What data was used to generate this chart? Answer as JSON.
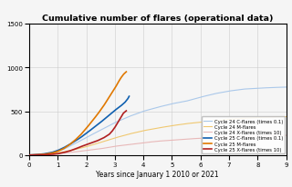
{
  "title": "Cumulative number of flares (operational data)",
  "xlabel": "Years since January 1 2010 or 2021",
  "xlim": [
    0,
    9
  ],
  "ylim": [
    0,
    1500
  ],
  "yticks": [
    0,
    500,
    1000,
    1500
  ],
  "xticks": [
    0,
    1,
    2,
    3,
    4,
    5,
    6,
    7,
    8,
    9
  ],
  "background_color": "#f5f5f5",
  "grid_color": "#cccccc",
  "series": {
    "c24_C": {
      "label": "Cycle 24 C-flares (times 0.1)",
      "color": "#aac8ea",
      "lw": 0.8,
      "zorder": 2
    },
    "c24_M": {
      "label": "Cycle 24 M-flares",
      "color": "#f0c870",
      "lw": 0.8,
      "zorder": 2
    },
    "c24_X": {
      "label": "Cycle 24 X-flares (times 10)",
      "color": "#e8b8b8",
      "lw": 0.8,
      "zorder": 2
    },
    "c25_C": {
      "label": "Cycle 25 C-flares (times 0.1)",
      "color": "#1060b0",
      "lw": 1.2,
      "zorder": 3
    },
    "c25_M": {
      "label": "Cycle 25 M-flares",
      "color": "#e07800",
      "lw": 1.2,
      "zorder": 3
    },
    "c25_X": {
      "label": "Cycle 25 X-flares (times 10)",
      "color": "#b02020",
      "lw": 1.2,
      "zorder": 3
    }
  },
  "c24_C_pts": [
    [
      0,
      0
    ],
    [
      0.4,
      8
    ],
    [
      0.8,
      25
    ],
    [
      1.2,
      65
    ],
    [
      1.6,
      130
    ],
    [
      2.0,
      200
    ],
    [
      2.5,
      285
    ],
    [
      3.0,
      370
    ],
    [
      3.5,
      440
    ],
    [
      4.0,
      500
    ],
    [
      4.5,
      545
    ],
    [
      5.0,
      585
    ],
    [
      5.5,
      615
    ],
    [
      6.0,
      660
    ],
    [
      6.5,
      700
    ],
    [
      7.0,
      730
    ],
    [
      7.5,
      752
    ],
    [
      8.0,
      762
    ],
    [
      8.5,
      770
    ],
    [
      9.0,
      775
    ]
  ],
  "c24_M_pts": [
    [
      0,
      0
    ],
    [
      0.5,
      8
    ],
    [
      1.0,
      25
    ],
    [
      1.5,
      55
    ],
    [
      2.0,
      95
    ],
    [
      2.5,
      145
    ],
    [
      3.0,
      195
    ],
    [
      3.5,
      240
    ],
    [
      4.0,
      278
    ],
    [
      4.5,
      308
    ],
    [
      5.0,
      335
    ],
    [
      5.5,
      358
    ],
    [
      6.0,
      375
    ],
    [
      6.5,
      392
    ],
    [
      7.0,
      408
    ],
    [
      7.5,
      420
    ],
    [
      8.0,
      428
    ],
    [
      8.5,
      433
    ],
    [
      9.0,
      438
    ]
  ],
  "c24_X_pts": [
    [
      0,
      0
    ],
    [
      0.5,
      4
    ],
    [
      1.0,
      15
    ],
    [
      1.5,
      32
    ],
    [
      2.0,
      52
    ],
    [
      2.5,
      72
    ],
    [
      3.0,
      100
    ],
    [
      3.5,
      120
    ],
    [
      4.0,
      140
    ],
    [
      4.5,
      158
    ],
    [
      5.0,
      170
    ],
    [
      5.5,
      182
    ],
    [
      6.0,
      192
    ],
    [
      6.5,
      200
    ],
    [
      7.0,
      208
    ],
    [
      7.5,
      214
    ],
    [
      8.0,
      218
    ],
    [
      8.5,
      222
    ],
    [
      9.0,
      225
    ]
  ],
  "c25_C_pts": [
    [
      0,
      0
    ],
    [
      0.2,
      3
    ],
    [
      0.5,
      12
    ],
    [
      0.8,
      30
    ],
    [
      1.0,
      52
    ],
    [
      1.2,
      82
    ],
    [
      1.4,
      118
    ],
    [
      1.6,
      158
    ],
    [
      1.8,
      200
    ],
    [
      2.0,
      248
    ],
    [
      2.2,
      298
    ],
    [
      2.4,
      348
    ],
    [
      2.6,
      400
    ],
    [
      2.8,
      455
    ],
    [
      3.0,
      510
    ],
    [
      3.2,
      558
    ],
    [
      3.35,
      600
    ],
    [
      3.45,
      640
    ],
    [
      3.5,
      670
    ]
  ],
  "c25_M_pts": [
    [
      0,
      0
    ],
    [
      0.2,
      2
    ],
    [
      0.5,
      8
    ],
    [
      0.8,
      22
    ],
    [
      1.0,
      42
    ],
    [
      1.2,
      72
    ],
    [
      1.4,
      115
    ],
    [
      1.6,
      168
    ],
    [
      1.8,
      230
    ],
    [
      2.0,
      305
    ],
    [
      2.2,
      385
    ],
    [
      2.4,
      468
    ],
    [
      2.6,
      558
    ],
    [
      2.8,
      660
    ],
    [
      3.0,
      760
    ],
    [
      3.1,
      820
    ],
    [
      3.2,
      875
    ],
    [
      3.3,
      920
    ],
    [
      3.4,
      950
    ]
  ],
  "c25_X_pts": [
    [
      0,
      0
    ],
    [
      0.5,
      3
    ],
    [
      0.8,
      8
    ],
    [
      1.0,
      15
    ],
    [
      1.2,
      28
    ],
    [
      1.4,
      45
    ],
    [
      1.6,
      68
    ],
    [
      1.8,
      95
    ],
    [
      2.0,
      118
    ],
    [
      2.2,
      140
    ],
    [
      2.4,
      165
    ],
    [
      2.6,
      195
    ],
    [
      2.8,
      235
    ],
    [
      2.9,
      270
    ],
    [
      3.0,
      315
    ],
    [
      3.1,
      370
    ],
    [
      3.2,
      425
    ],
    [
      3.3,
      478
    ],
    [
      3.4,
      505
    ]
  ]
}
